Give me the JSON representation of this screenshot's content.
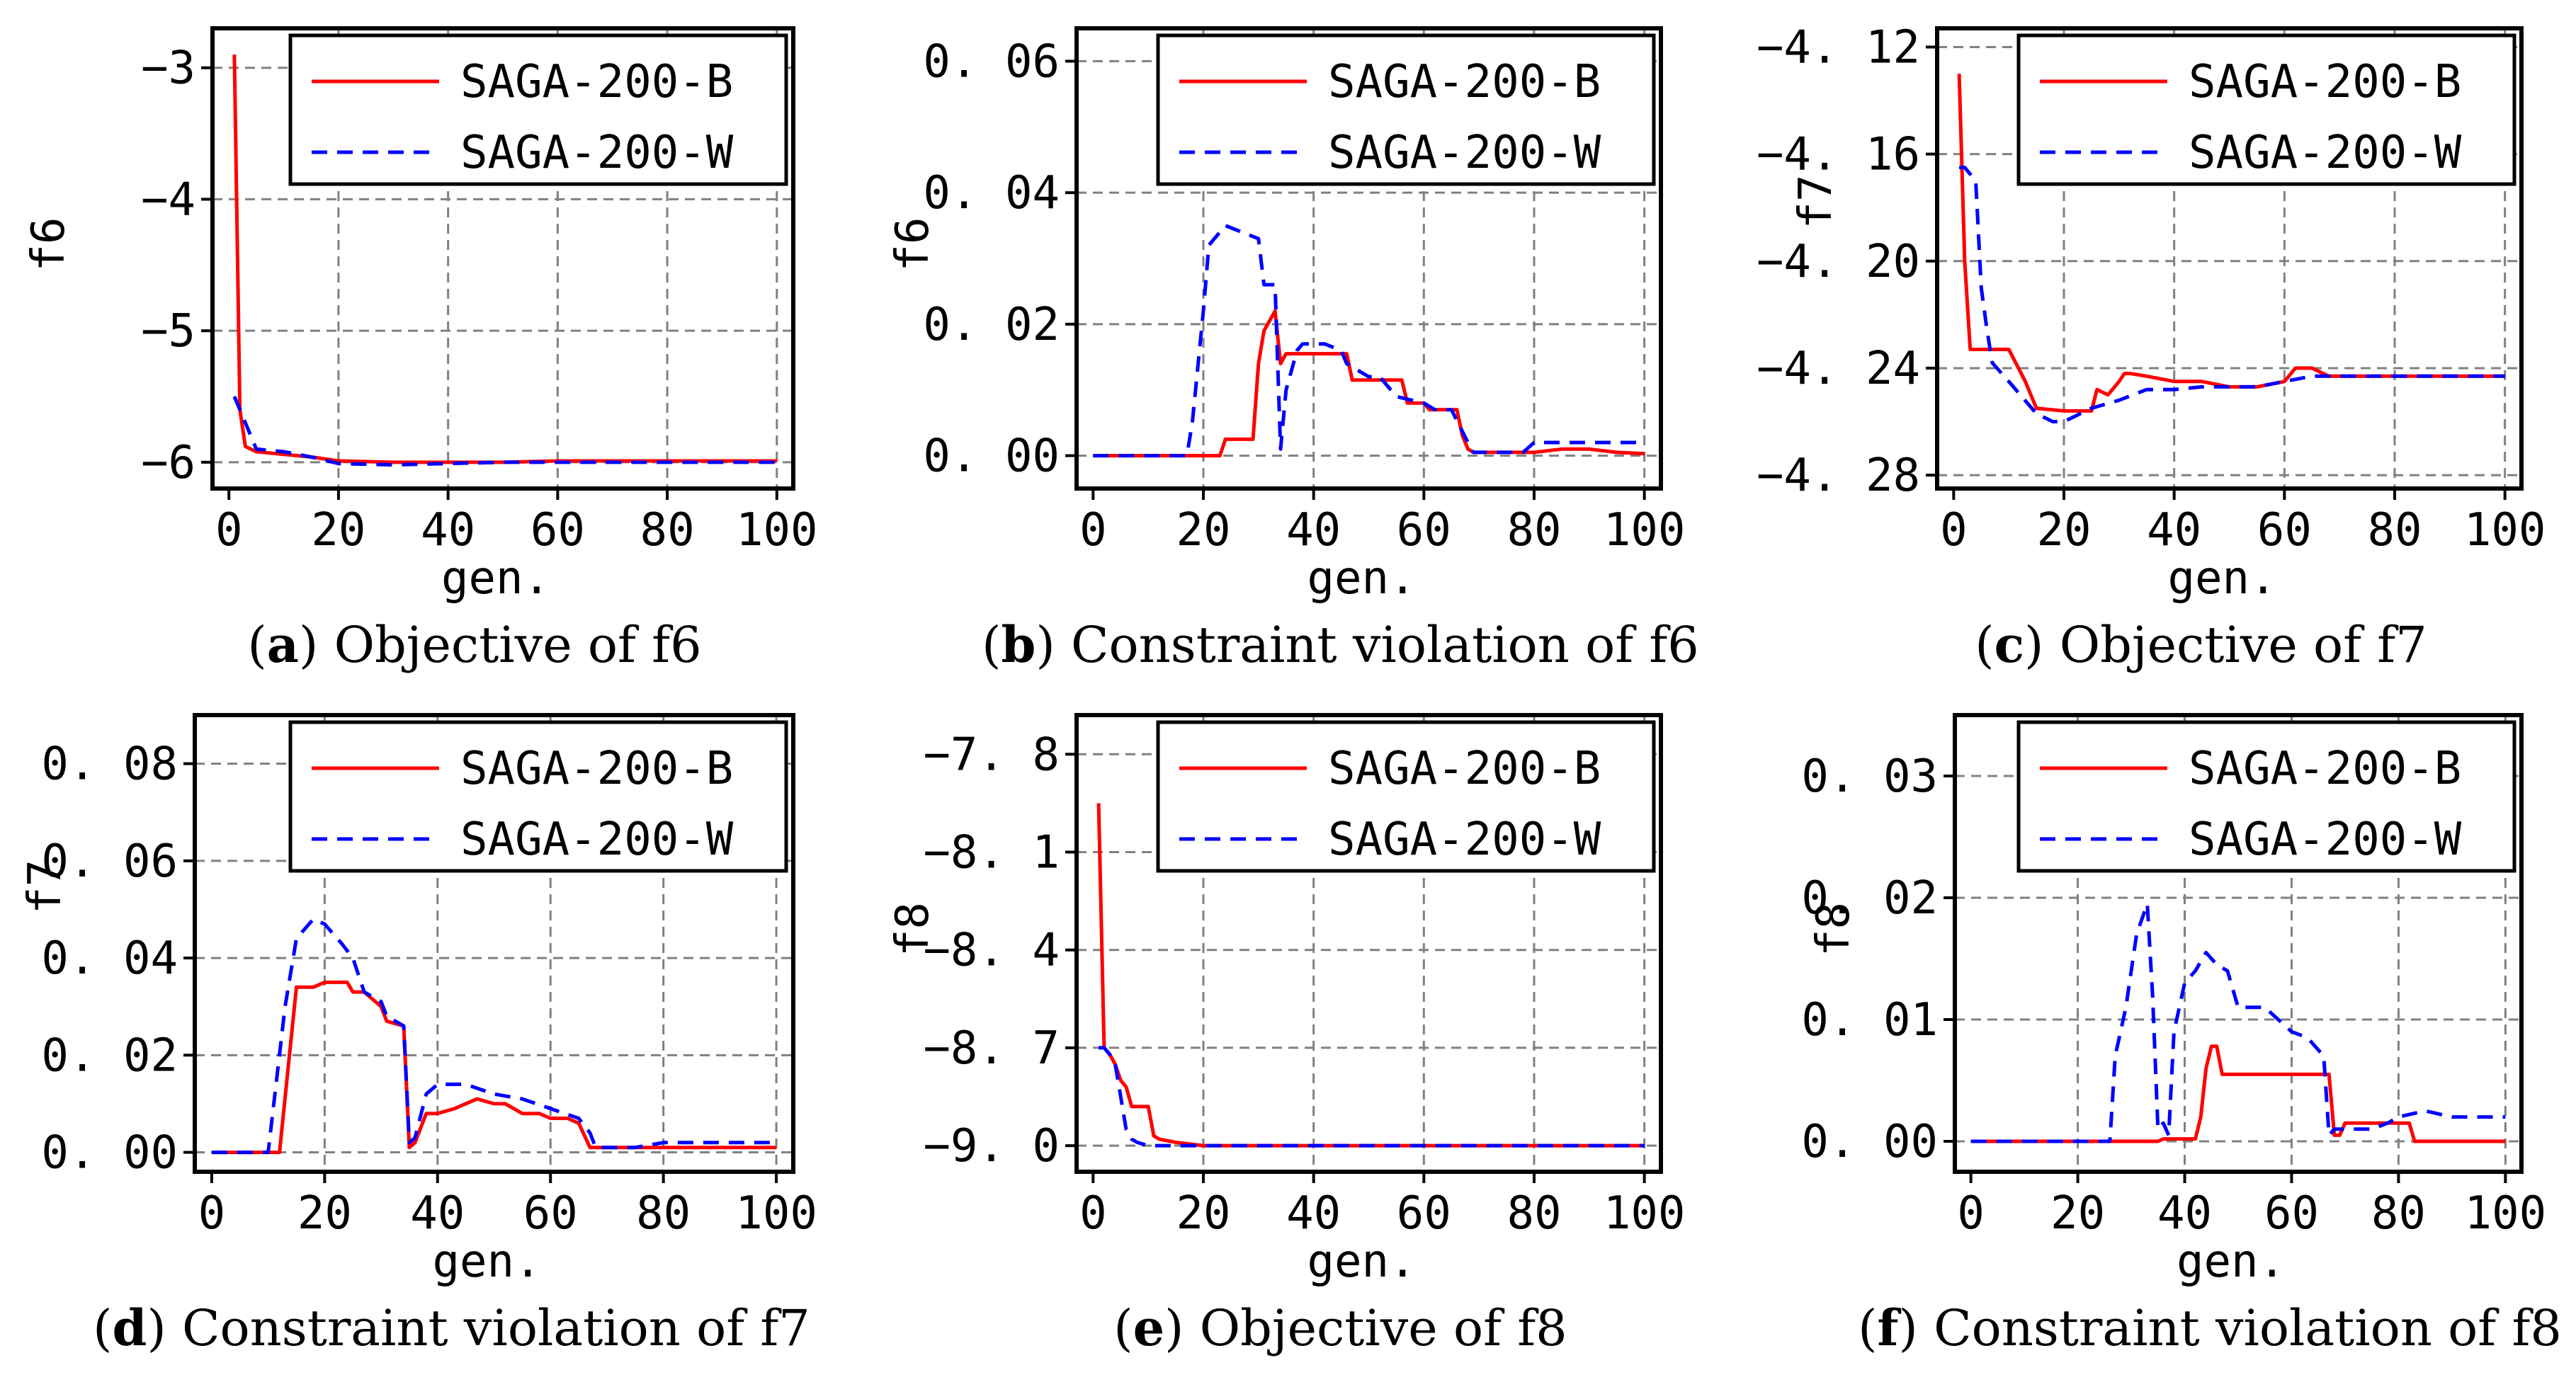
{
  "colors": {
    "series_b": "#ff0000",
    "series_w": "#0000ff",
    "grid": "#808080",
    "axes": "#000000"
  },
  "chart_data": [
    {
      "type": "line",
      "caption_letter": "a",
      "caption_text": "Objective of f6",
      "ylabel": "f6",
      "xlabel": "gen.",
      "xlim": [
        -3,
        103
      ],
      "ylim": [
        -6.2,
        -2.7
      ],
      "xticks": [
        0,
        20,
        40,
        60,
        80,
        100
      ],
      "xticklabels": [
        "0",
        "20",
        "40",
        "60",
        "80",
        "100"
      ],
      "yticks": [
        -6,
        -5,
        -4,
        -3
      ],
      "yticklabels": [
        "−6",
        "−5",
        "−4",
        "−3"
      ],
      "grid": true,
      "legend": "top-right",
      "series": [
        {
          "name": "SAGA-200-B",
          "style": "solid",
          "x": [
            1,
            2,
            3,
            5,
            10,
            15,
            20,
            30,
            40,
            50,
            60,
            70,
            80,
            90,
            100
          ],
          "y": [
            -2.9,
            -5.6,
            -5.88,
            -5.92,
            -5.94,
            -5.96,
            -5.99,
            -6.0,
            -6.0,
            -6.0,
            -5.99,
            -5.99,
            -5.99,
            -5.99,
            -5.99
          ]
        },
        {
          "name": "SAGA-200-W",
          "style": "dashed",
          "x": [
            1,
            2,
            3,
            5,
            10,
            15,
            20,
            30,
            40,
            50,
            60,
            70,
            80,
            90,
            100
          ],
          "y": [
            -5.5,
            -5.6,
            -5.7,
            -5.9,
            -5.92,
            -5.96,
            -6.01,
            -6.02,
            -6.01,
            -6.0,
            -6.0,
            -6.0,
            -6.0,
            -6.0,
            -6.0
          ]
        }
      ]
    },
    {
      "type": "line",
      "caption_letter": "b",
      "caption_text": "Constraint violation of f6",
      "ylabel": "f6",
      "xlabel": "gen.",
      "xlim": [
        -3,
        103
      ],
      "ylim": [
        -0.005,
        0.065
      ],
      "xticks": [
        0,
        20,
        40,
        60,
        80,
        100
      ],
      "xticklabels": [
        "0",
        "20",
        "40",
        "60",
        "80",
        "100"
      ],
      "yticks": [
        0,
        0.02,
        0.04,
        0.06
      ],
      "yticklabels": [
        "0. 00",
        "0. 02",
        "0. 04",
        "0. 06"
      ],
      "grid": true,
      "legend": "top-right",
      "series": [
        {
          "name": "SAGA-200-B",
          "style": "solid",
          "x": [
            0,
            23,
            24,
            29,
            30,
            31,
            33,
            34,
            35,
            37,
            38,
            46,
            47,
            50,
            51,
            56,
            57,
            60,
            61,
            66,
            67,
            68,
            69,
            75,
            80,
            85,
            90,
            95,
            100
          ],
          "y": [
            0,
            0,
            0.0025,
            0.0025,
            0.014,
            0.019,
            0.022,
            0.014,
            0.0155,
            0.0155,
            0.0155,
            0.0155,
            0.0115,
            0.0115,
            0.0115,
            0.0115,
            0.008,
            0.008,
            0.007,
            0.007,
            0.003,
            0.001,
            0.0005,
            0.0005,
            0.0005,
            0.001,
            0.001,
            0.0005,
            0.0003
          ]
        },
        {
          "name": "SAGA-200-W",
          "style": "dashed",
          "x": [
            0,
            17,
            18,
            20,
            21,
            24,
            27,
            30,
            31,
            33,
            34,
            35,
            37,
            38,
            42,
            45,
            46,
            48,
            50,
            52,
            55,
            60,
            62,
            65,
            68,
            69,
            75,
            78,
            80,
            85,
            90,
            100
          ],
          "y": [
            0,
            0,
            0.005,
            0.022,
            0.032,
            0.035,
            0.034,
            0.033,
            0.026,
            0.026,
            0.001,
            0.01,
            0.016,
            0.017,
            0.017,
            0.016,
            0.014,
            0.013,
            0.012,
            0.012,
            0.009,
            0.008,
            0.007,
            0.007,
            0.002,
            0.0005,
            0.0005,
            0.0005,
            0.002,
            0.002,
            0.002,
            0.002
          ]
        }
      ]
    },
    {
      "type": "line",
      "caption_letter": "c",
      "caption_text": "Objective of f7",
      "ylabel": "f7",
      "xlabel": "gen.",
      "xlim": [
        -3,
        103
      ],
      "ylim": [
        -4.285,
        -4.113
      ],
      "xticks": [
        0,
        20,
        40,
        60,
        80,
        100
      ],
      "xticklabels": [
        "0",
        "20",
        "40",
        "60",
        "80",
        "100"
      ],
      "yticks": [
        -4.28,
        -4.24,
        -4.2,
        -4.16,
        -4.12
      ],
      "yticklabels": [
        "−4. 28",
        "−4. 24",
        "−4. 20",
        "−4. 16",
        "−4. 12"
      ],
      "grid": true,
      "legend": "top-right",
      "series": [
        {
          "name": "SAGA-200-B",
          "style": "solid",
          "x": [
            1,
            2,
            3,
            4,
            10,
            13,
            15,
            20,
            25,
            26,
            28,
            30,
            31,
            32,
            35,
            40,
            45,
            50,
            55,
            60,
            62,
            65,
            68,
            70,
            80,
            90,
            100
          ],
          "y": [
            -4.13,
            -4.2,
            -4.233,
            -4.233,
            -4.233,
            -4.245,
            -4.255,
            -4.256,
            -4.256,
            -4.248,
            -4.25,
            -4.245,
            -4.242,
            -4.242,
            -4.243,
            -4.245,
            -4.245,
            -4.247,
            -4.247,
            -4.245,
            -4.24,
            -4.24,
            -4.243,
            -4.243,
            -4.243,
            -4.243,
            -4.243
          ]
        },
        {
          "name": "SAGA-200-W",
          "style": "dashed",
          "x": [
            1,
            2,
            4,
            5,
            6,
            7,
            10,
            15,
            18,
            20,
            25,
            30,
            35,
            40,
            45,
            50,
            55,
            60,
            65,
            70,
            75,
            80,
            90,
            100
          ],
          "y": [
            -4.165,
            -4.165,
            -4.17,
            -4.21,
            -4.225,
            -4.238,
            -4.245,
            -4.257,
            -4.26,
            -4.26,
            -4.255,
            -4.252,
            -4.248,
            -4.248,
            -4.247,
            -4.247,
            -4.247,
            -4.245,
            -4.243,
            -4.243,
            -4.243,
            -4.243,
            -4.243,
            -4.243
          ]
        }
      ]
    },
    {
      "type": "line",
      "caption_letter": "d",
      "caption_text": "Constraint violation of f7",
      "ylabel": "f7",
      "xlabel": "gen.",
      "xlim": [
        -3,
        103
      ],
      "ylim": [
        -0.004,
        0.09
      ],
      "xticks": [
        0,
        20,
        40,
        60,
        80,
        100
      ],
      "xticklabels": [
        "0",
        "20",
        "40",
        "60",
        "80",
        "100"
      ],
      "yticks": [
        0,
        0.02,
        0.04,
        0.06,
        0.08
      ],
      "yticklabels": [
        "0. 00",
        "0. 02",
        "0. 04",
        "0. 06",
        "0. 08"
      ],
      "grid": true,
      "legend": "top-right",
      "series": [
        {
          "name": "SAGA-200-B",
          "style": "solid",
          "x": [
            0,
            12,
            15,
            18,
            20,
            24,
            25,
            27,
            30,
            31,
            34,
            35,
            36,
            38,
            40,
            43,
            45,
            47,
            50,
            52,
            55,
            58,
            60,
            63,
            65,
            67,
            68,
            70,
            80,
            90,
            100
          ],
          "y": [
            0,
            0,
            0.034,
            0.034,
            0.035,
            0.035,
            0.033,
            0.033,
            0.03,
            0.027,
            0.026,
            0.001,
            0.002,
            0.008,
            0.008,
            0.009,
            0.01,
            0.011,
            0.01,
            0.01,
            0.008,
            0.008,
            0.007,
            0.007,
            0.006,
            0.001,
            0.001,
            0.001,
            0.001,
            0.001,
            0.001
          ]
        },
        {
          "name": "SAGA-200-W",
          "style": "dashed",
          "x": [
            0,
            10,
            13,
            15,
            18,
            20,
            23,
            25,
            27,
            30,
            31,
            34,
            35,
            36,
            38,
            40,
            45,
            50,
            55,
            60,
            65,
            67,
            68,
            70,
            75,
            80,
            90,
            100
          ],
          "y": [
            0,
            0,
            0.03,
            0.044,
            0.048,
            0.047,
            0.043,
            0.04,
            0.033,
            0.031,
            0.028,
            0.026,
            0.002,
            0.003,
            0.012,
            0.014,
            0.014,
            0.012,
            0.011,
            0.009,
            0.007,
            0.004,
            0.001,
            0.001,
            0.001,
            0.002,
            0.002,
            0.002
          ]
        }
      ]
    },
    {
      "type": "line",
      "caption_letter": "e",
      "caption_text": "Objective of f8",
      "ylabel": "f8",
      "xlabel": "gen.",
      "xlim": [
        -3,
        103
      ],
      "ylim": [
        -9.08,
        -7.68
      ],
      "xticks": [
        0,
        20,
        40,
        60,
        80,
        100
      ],
      "xticklabels": [
        "0",
        "20",
        "40",
        "60",
        "80",
        "100"
      ],
      "yticks": [
        -9.0,
        -8.7,
        -8.4,
        -8.1,
        -7.8
      ],
      "yticklabels": [
        "−9. 0",
        "−8. 7",
        "−8. 4",
        "−8. 1",
        "−7. 8"
      ],
      "grid": true,
      "legend": "top-right",
      "series": [
        {
          "name": "SAGA-200-B",
          "style": "solid",
          "x": [
            1,
            2,
            3,
            4,
            5,
            6,
            7,
            10,
            11,
            12,
            15,
            20,
            30,
            40,
            50,
            60,
            70,
            80,
            90,
            100
          ],
          "y": [
            -7.95,
            -8.7,
            -8.72,
            -8.75,
            -8.8,
            -8.82,
            -8.88,
            -8.88,
            -8.97,
            -8.98,
            -8.99,
            -9.0,
            -9.0,
            -9.0,
            -9.0,
            -9.0,
            -9.0,
            -9.0,
            -9.0,
            -9.0
          ]
        },
        {
          "name": "SAGA-200-W",
          "style": "dashed",
          "x": [
            1,
            2,
            3,
            4,
            5,
            6,
            7,
            8,
            10,
            15,
            20,
            30,
            40,
            50,
            60,
            70,
            80,
            90,
            100
          ],
          "y": [
            -8.7,
            -8.7,
            -8.72,
            -8.75,
            -8.85,
            -8.95,
            -8.98,
            -8.99,
            -9.0,
            -9.0,
            -9.0,
            -9.0,
            -9.0,
            -9.0,
            -9.0,
            -9.0,
            -9.0,
            -9.0,
            -9.0
          ]
        }
      ]
    },
    {
      "type": "line",
      "caption_letter": "f",
      "caption_text": "Constraint violation of f8",
      "ylabel": "f8",
      "xlabel": "gen.",
      "xlim": [
        -3,
        103
      ],
      "ylim": [
        -0.0025,
        0.035
      ],
      "xticks": [
        0,
        20,
        40,
        60,
        80,
        100
      ],
      "xticklabels": [
        "0",
        "20",
        "40",
        "60",
        "80",
        "100"
      ],
      "yticks": [
        0,
        0.01,
        0.02,
        0.03
      ],
      "yticklabels": [
        "0. 00",
        "0. 01",
        "0. 02",
        "0. 03"
      ],
      "grid": true,
      "legend": "top-right",
      "series": [
        {
          "name": "SAGA-200-B",
          "style": "solid",
          "x": [
            0,
            35,
            36,
            42,
            43,
            44,
            45,
            46,
            47,
            55,
            60,
            66,
            67,
            68,
            69,
            70,
            75,
            80,
            82,
            83,
            90,
            100
          ],
          "y": [
            0,
            0,
            0.0002,
            0.0002,
            0.002,
            0.006,
            0.0078,
            0.0078,
            0.0055,
            0.0055,
            0.0055,
            0.0055,
            0.0055,
            0.0005,
            0.0005,
            0.0015,
            0.0015,
            0.0015,
            0.0015,
            0,
            0,
            0
          ]
        },
        {
          "name": "SAGA-200-W",
          "style": "dashed",
          "x": [
            0,
            26,
            27,
            29,
            31,
            33,
            34,
            35,
            36,
            37,
            38,
            40,
            42,
            44,
            46,
            48,
            50,
            52,
            55,
            60,
            63,
            65,
            66,
            67,
            68,
            70,
            75,
            78,
            80,
            85,
            90,
            100
          ],
          "y": [
            0,
            0,
            0.007,
            0.011,
            0.017,
            0.0195,
            0.012,
            0.001,
            0.0015,
            0.0005,
            0.009,
            0.013,
            0.014,
            0.0155,
            0.0145,
            0.014,
            0.011,
            0.011,
            0.011,
            0.009,
            0.0085,
            0.0075,
            0.007,
            0.0005,
            0.001,
            0.001,
            0.001,
            0.0015,
            0.002,
            0.0025,
            0.002,
            0.002
          ]
        }
      ]
    }
  ]
}
